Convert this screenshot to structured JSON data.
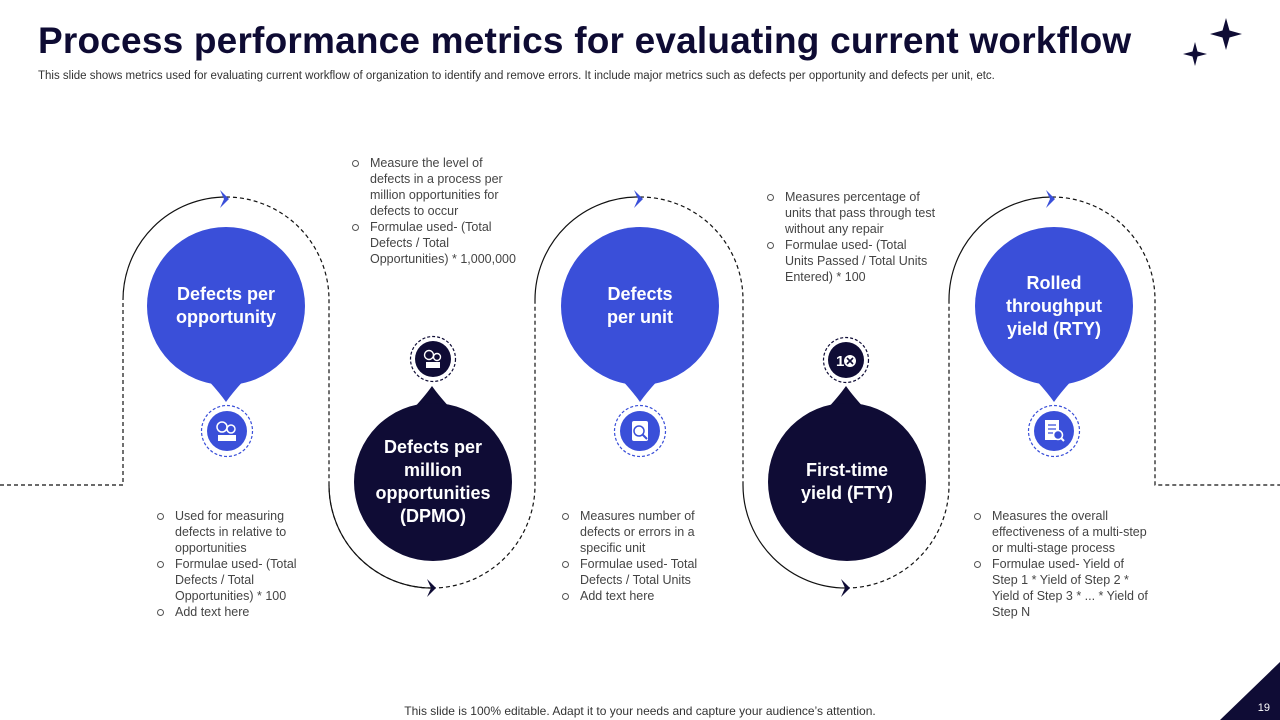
{
  "slide": {
    "title": "Process performance metrics for evaluating current workflow",
    "subtitle": "This slide shows metrics used for evaluating current workflow of organization to identify and remove errors. It include major metrics such as defects per opportunity and defects per unit, etc.",
    "footer": "This slide is 100% editable. Adapt it to your needs and capture your audience’s attention.",
    "page_number": "19"
  },
  "colors": {
    "accent_blue": "#3a4fd9",
    "navy": "#0f0c35"
  },
  "metrics": [
    {
      "label": "Defects per\nopportunity",
      "icon": "defects-opportunity-icon",
      "bullets": [
        "Used for measuring defects in relative to opportunities",
        "Formulae used- (Total Defects / Total Opportunities) * 100",
        "Add text here"
      ]
    },
    {
      "label": "Defects per\nmillion\nopportunities\n(DPMO)",
      "icon": "dpmo-icon",
      "bullets": [
        "Measure the level of defects in a process per million opportunities for defects to occur",
        "Formulae used- (Total Defects / Total Opportunities) * 1,000,000"
      ]
    },
    {
      "label": "Defects\nper unit",
      "icon": "defect-unit-icon",
      "bullets": [
        "Measures number of defects or errors in a specific unit",
        "Formulae used- Total Defects / Total Units",
        "Add text here"
      ]
    },
    {
      "label": "First-time\nyield (FTY)",
      "icon": "first-time-yield-icon",
      "bullets": [
        "Measures percentage of units that pass through test without any repair",
        "Formulae used- (Total Units Passed / Total Units Entered) * 100"
      ]
    },
    {
      "label": "Rolled\nthroughput\nyield (RTY)",
      "icon": "report-magnifier-icon",
      "bullets": [
        "Measures the overall effectiveness of a multi-step or multi-stage process",
        "Formulae used- Yield of Step 1 * Yield of Step 2 * Yield of Step 3 * ... * Yield of Step N"
      ]
    }
  ]
}
